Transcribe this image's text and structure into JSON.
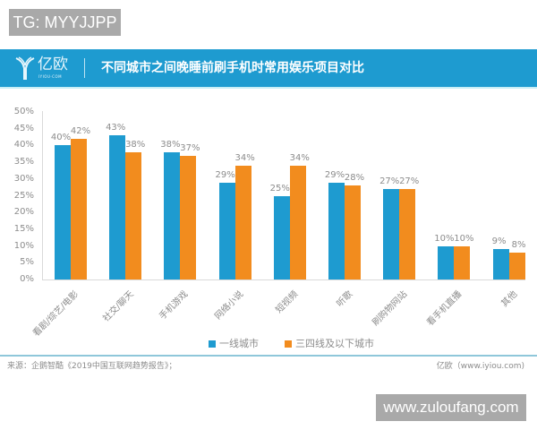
{
  "watermark_top": "TG: MYYJJPP",
  "watermark_bottom": "www.zuloufang.com",
  "header": {
    "logo_text": "亿欧",
    "logo_sub": "IYIOU·COM",
    "title": "不同城市之间晚睡前刷手机时常用娱乐项目对比"
  },
  "colors": {
    "series1": "#1e9bd0",
    "series2": "#f28c1e",
    "header_bg": "#1e9bd0"
  },
  "footer": {
    "source": "来源：企鹅智酷《2019中国互联网趋势报告》；",
    "credit": "亿欧（www.iyiou.com)"
  },
  "chart_data": {
    "type": "bar",
    "title": "不同城市之间晚睡前刷手机时常用娱乐项目对比",
    "xlabel": "",
    "ylabel": "",
    "ylim": [
      0,
      50
    ],
    "yticks": [
      "0%",
      "5%",
      "10%",
      "15%",
      "20%",
      "25%",
      "30%",
      "35%",
      "40%",
      "45%",
      "50%"
    ],
    "categories": [
      "看剧/综艺/电影",
      "社交/聊天",
      "手机游戏",
      "网络小说",
      "短视频",
      "听歌",
      "刷购物网站",
      "看手机直播",
      "其他"
    ],
    "series": [
      {
        "name": "一线城市",
        "values": [
          40,
          43,
          38,
          29,
          25,
          29,
          27,
          10,
          9
        ],
        "labels": [
          "40%",
          "43%",
          "38%",
          "29%",
          "25%",
          "29%",
          "27%",
          "10%",
          "9%"
        ]
      },
      {
        "name": "三四线及以下城市",
        "values": [
          42,
          38,
          37,
          34,
          34,
          28,
          27,
          10,
          8
        ],
        "labels": [
          "42%",
          "38%",
          "37%",
          "34%",
          "34%",
          "28%",
          "27%",
          "10%",
          "8%"
        ]
      }
    ],
    "legend_position": "bottom",
    "grid": false,
    "unit": "%"
  }
}
